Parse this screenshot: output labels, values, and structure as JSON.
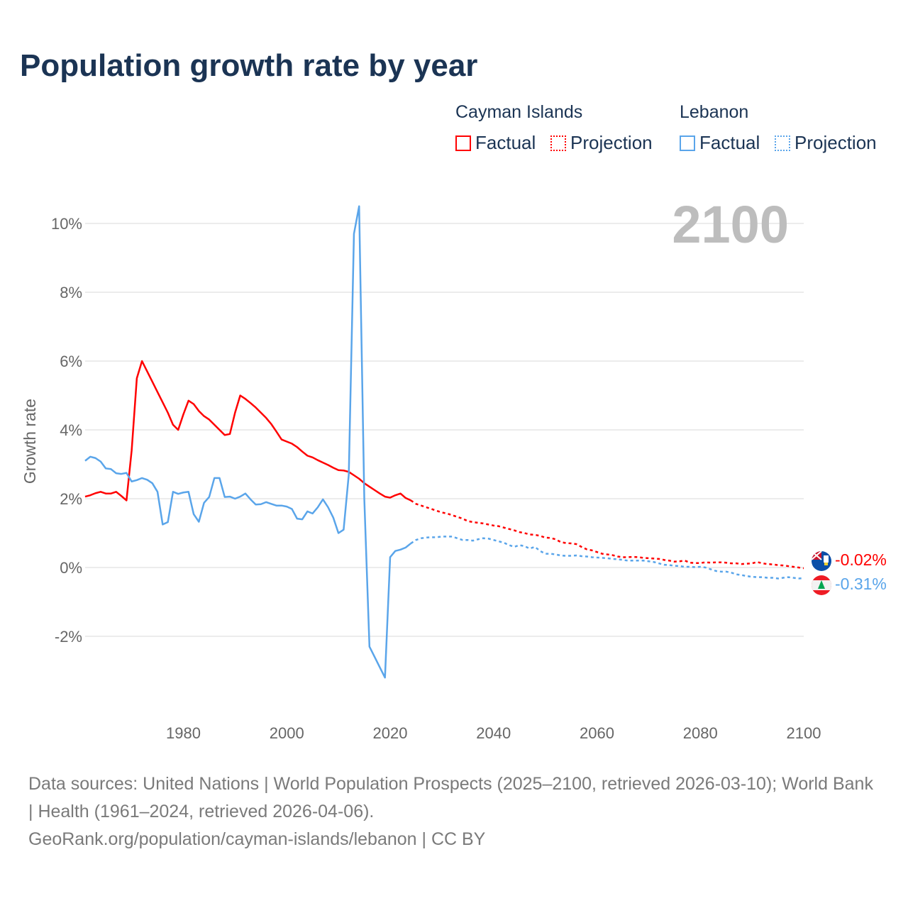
{
  "title": "Population growth rate by year",
  "legend": {
    "groups": [
      {
        "name": "Cayman Islands",
        "factual": "Factual",
        "projection": "Projection",
        "color": "#ff0000"
      },
      {
        "name": "Lebanon",
        "factual": "Factual",
        "projection": "Projection",
        "color": "#5aa5ea"
      }
    ]
  },
  "year_label": "2100",
  "end_labels": {
    "cayman": "-0.02%",
    "lebanon": "-0.31%"
  },
  "flags": [
    "cayman-islands-flag-icon",
    "lebanon-flag-icon"
  ],
  "footer": {
    "sources": "Data sources: United Nations | World Population Prospects (2025–2100, retrieved 2026-03-10); World Bank | Health (1961–2024, retrieved 2026-04-06).",
    "link": "GeoRank.org/population/cayman-islands/lebanon | CC BY"
  },
  "chart_data": {
    "type": "line",
    "title": "Population growth rate by year",
    "xlabel": "",
    "ylabel": "Growth rate",
    "xlim": [
      1961,
      2100
    ],
    "ylim": [
      -4,
      10.5
    ],
    "yticks": [
      -2,
      0,
      2,
      4,
      6,
      8,
      10
    ],
    "ytick_labels": [
      "-2%",
      "0%",
      "2%",
      "4%",
      "6%",
      "8%",
      "10%"
    ],
    "xticks": [
      1980,
      2000,
      2020,
      2040,
      2060,
      2080,
      2100
    ],
    "xtick_labels": [
      "1980",
      "2000",
      "2020",
      "2040",
      "2060",
      "2080",
      "2100"
    ],
    "grid": true,
    "legend_position": "top-right",
    "series": [
      {
        "name": "Cayman Islands Factual",
        "color": "#ff0000",
        "style": "solid",
        "start_year": 1961,
        "values": [
          2.06,
          2.1,
          2.16,
          2.2,
          2.15,
          2.15,
          2.2,
          2.08,
          1.95,
          3.4,
          5.5,
          6.0,
          5.7,
          5.4,
          5.1,
          4.8,
          4.5,
          4.15,
          4.0,
          4.45,
          4.85,
          4.75,
          4.55,
          4.4,
          4.3,
          4.15,
          4.0,
          3.85,
          3.88,
          4.5,
          5.0,
          4.9,
          4.78,
          4.65,
          4.5,
          4.35,
          4.17,
          3.95,
          3.72,
          3.66,
          3.6,
          3.5,
          3.37,
          3.25,
          3.2,
          3.12,
          3.05,
          2.98,
          2.9,
          2.83,
          2.82,
          2.78,
          2.68,
          2.58,
          2.45,
          2.35,
          2.25,
          2.15,
          2.06,
          2.03,
          2.1,
          2.15,
          2.02,
          1.95
        ]
      },
      {
        "name": "Cayman Islands Projection",
        "color": "#ff0000",
        "style": "dotted",
        "end_year": 2100,
        "values": [
          1.85,
          1.8,
          1.75,
          1.7,
          1.65,
          1.6,
          1.57,
          1.52,
          1.47,
          1.42,
          1.35,
          1.32,
          1.3,
          1.28,
          1.25,
          1.22,
          1.2,
          1.16,
          1.12,
          1.08,
          1.03,
          1.0,
          0.96,
          0.95,
          0.92,
          0.87,
          0.86,
          0.82,
          0.74,
          0.71,
          0.7,
          0.68,
          0.6,
          0.53,
          0.5,
          0.45,
          0.4,
          0.38,
          0.36,
          0.32,
          0.3,
          0.3,
          0.31,
          0.3,
          0.28,
          0.27,
          0.26,
          0.25,
          0.22,
          0.2,
          0.17,
          0.18,
          0.2,
          0.14,
          0.13,
          0.13,
          0.15,
          0.14,
          0.15,
          0.15,
          0.14,
          0.12,
          0.12,
          0.1,
          0.11,
          0.12,
          0.16,
          0.12,
          0.1,
          0.09,
          0.07,
          0.06,
          0.04,
          0.02,
          0.0,
          -0.02
        ]
      },
      {
        "name": "Lebanon Factual",
        "color": "#5aa5ea",
        "style": "solid",
        "start_year": 1961,
        "values": [
          3.1,
          3.22,
          3.18,
          3.08,
          2.88,
          2.86,
          2.74,
          2.72,
          2.75,
          2.5,
          2.54,
          2.6,
          2.55,
          2.45,
          2.2,
          1.25,
          1.32,
          2.2,
          2.14,
          2.18,
          2.2,
          1.55,
          1.33,
          1.88,
          2.05,
          2.6,
          2.6,
          2.05,
          2.06,
          2.0,
          2.06,
          2.15,
          1.98,
          1.83,
          1.84,
          1.9,
          1.85,
          1.8,
          1.8,
          1.77,
          1.7,
          1.42,
          1.4,
          1.63,
          1.57,
          1.75,
          1.98,
          1.75,
          1.45,
          1.0,
          1.1,
          2.7,
          9.7,
          10.5,
          2.0,
          -2.3,
          -2.6,
          -2.9,
          -3.2,
          0.3,
          0.48,
          0.52,
          0.58,
          0.7
        ]
      },
      {
        "name": "Lebanon Projection",
        "color": "#5aa5ea",
        "style": "dotted",
        "end_year": 2100,
        "values": [
          0.8,
          0.85,
          0.87,
          0.88,
          0.88,
          0.9,
          0.9,
          0.9,
          0.85,
          0.8,
          0.8,
          0.78,
          0.82,
          0.85,
          0.84,
          0.8,
          0.76,
          0.72,
          0.65,
          0.6,
          0.65,
          0.62,
          0.55,
          0.6,
          0.48,
          0.4,
          0.4,
          0.38,
          0.35,
          0.34,
          0.34,
          0.35,
          0.33,
          0.32,
          0.3,
          0.29,
          0.28,
          0.27,
          0.25,
          0.24,
          0.22,
          0.2,
          0.2,
          0.2,
          0.2,
          0.18,
          0.16,
          0.12,
          0.08,
          0.07,
          0.05,
          0.04,
          0.02,
          0.02,
          0.01,
          0.02,
          0.0,
          -0.05,
          -0.1,
          -0.12,
          -0.12,
          -0.15,
          -0.2,
          -0.22,
          -0.25,
          -0.27,
          -0.28,
          -0.28,
          -0.3,
          -0.3,
          -0.32,
          -0.3,
          -0.28,
          -0.3,
          -0.32,
          -0.31
        ]
      }
    ]
  }
}
